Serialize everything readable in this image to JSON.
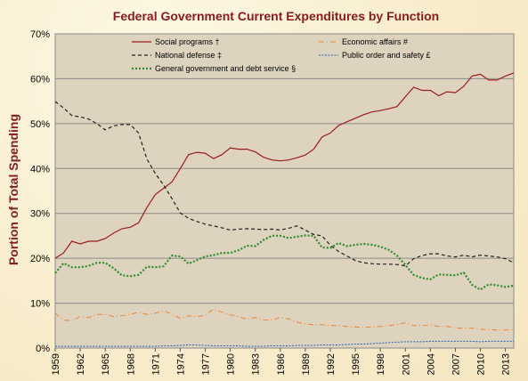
{
  "chart_data": {
    "type": "line",
    "title": "Federal Government Current Expenditures by Function",
    "ylabel": "Portion of Total Spending",
    "xlabel": "",
    "ylim": [
      0,
      70
    ],
    "yticks": [
      0,
      10,
      20,
      30,
      40,
      50,
      60,
      70
    ],
    "ytick_labels": [
      "0%",
      "10%",
      "20%",
      "30%",
      "40%",
      "50%",
      "60%",
      "70%"
    ],
    "xlim": [
      1959,
      2014
    ],
    "xticks": [
      1959,
      1962,
      1965,
      1968,
      1971,
      1974,
      1977,
      1980,
      1983,
      1986,
      1989,
      1992,
      1995,
      1998,
      2001,
      2004,
      2007,
      2010,
      2013
    ],
    "grid": "horizontal",
    "legend_placement": "top",
    "x": [
      1959,
      1960,
      1961,
      1962,
      1963,
      1964,
      1965,
      1966,
      1967,
      1968,
      1969,
      1970,
      1971,
      1972,
      1973,
      1974,
      1975,
      1976,
      1977,
      1978,
      1979,
      1980,
      1981,
      1982,
      1983,
      1984,
      1985,
      1986,
      1987,
      1988,
      1989,
      1990,
      1991,
      1992,
      1993,
      1994,
      1995,
      1996,
      1997,
      1998,
      1999,
      2000,
      2001,
      2002,
      2003,
      2004,
      2005,
      2006,
      2007,
      2008,
      2009,
      2010,
      2011,
      2012,
      2013,
      2014
    ],
    "series": [
      {
        "name": "Social programs †",
        "color": "#9b1c1c",
        "style": "solid",
        "values": [
          20.0,
          21.2,
          23.8,
          23.2,
          23.8,
          23.8,
          24.4,
          25.6,
          26.6,
          26.9,
          27.9,
          31.3,
          34.2,
          35.6,
          37.0,
          40.0,
          43.1,
          43.6,
          43.4,
          42.2,
          43.1,
          44.6,
          44.3,
          44.3,
          43.7,
          42.5,
          41.9,
          41.7,
          41.9,
          42.4,
          43.0,
          44.3,
          47.0,
          47.9,
          49.6,
          50.4,
          51.2,
          52.0,
          52.6,
          52.9,
          53.3,
          53.8,
          56.0,
          58.1,
          57.4,
          57.4,
          56.2,
          57.1,
          56.9,
          58.3,
          60.6,
          61.0,
          59.7,
          59.7,
          60.6,
          61.3
        ]
      },
      {
        "name": "Economic affairs #",
        "color": "#e8843a",
        "style": "dashdot",
        "values": [
          7.8,
          6.2,
          6.1,
          7.0,
          6.8,
          7.5,
          7.5,
          7.0,
          7.2,
          7.5,
          8.0,
          7.5,
          7.8,
          8.3,
          7.6,
          6.6,
          7.2,
          7.0,
          7.3,
          8.7,
          8.0,
          7.4,
          7.0,
          6.4,
          6.8,
          6.2,
          6.3,
          6.8,
          6.5,
          5.8,
          5.4,
          5.2,
          5.2,
          5.0,
          5.0,
          4.8,
          4.7,
          4.6,
          4.7,
          4.8,
          5.0,
          5.3,
          5.6,
          5.0,
          5.0,
          5.2,
          4.8,
          4.8,
          4.5,
          4.4,
          4.4,
          4.2,
          4.1,
          4.0,
          4.0,
          4.1
        ]
      },
      {
        "name": "National defense ‡",
        "color": "#222222",
        "style": "dashed",
        "values": [
          54.9,
          53.5,
          51.8,
          51.5,
          51.0,
          50.0,
          48.6,
          49.5,
          49.8,
          49.8,
          47.9,
          42.1,
          38.9,
          36.3,
          33.3,
          30.1,
          28.9,
          28.2,
          27.6,
          27.2,
          26.8,
          26.3,
          26.5,
          26.6,
          26.5,
          26.4,
          26.5,
          26.3,
          26.7,
          27.2,
          26.3,
          25.3,
          25.0,
          22.9,
          21.5,
          20.5,
          19.5,
          19.0,
          18.8,
          18.7,
          18.7,
          18.6,
          18.3,
          19.9,
          20.6,
          21.0,
          21.0,
          20.5,
          20.3,
          20.7,
          20.3,
          20.7,
          20.5,
          20.3,
          19.9,
          19.0
        ]
      },
      {
        "name": "Public order and safety £",
        "color": "#2a5fb8",
        "style": "dotted",
        "values": [
          0.4,
          0.4,
          0.4,
          0.4,
          0.4,
          0.4,
          0.4,
          0.4,
          0.4,
          0.4,
          0.4,
          0.4,
          0.4,
          0.5,
          0.5,
          0.6,
          0.7,
          0.7,
          0.6,
          0.5,
          0.5,
          0.5,
          0.5,
          0.4,
          0.4,
          0.4,
          0.5,
          0.5,
          0.5,
          0.6,
          0.6,
          0.6,
          0.7,
          0.7,
          0.7,
          0.8,
          0.9,
          0.9,
          1.0,
          1.1,
          1.2,
          1.3,
          1.4,
          1.4,
          1.4,
          1.5,
          1.5,
          1.5,
          1.5,
          1.5,
          1.5,
          1.4,
          1.5,
          1.5,
          1.5,
          1.5
        ]
      },
      {
        "name": "General government and debt service §",
        "color": "#2e8b2e",
        "style": "dotted-bold",
        "values": [
          16.7,
          18.9,
          18.0,
          18.0,
          18.3,
          19.0,
          19.0,
          17.8,
          16.2,
          16.0,
          16.3,
          18.1,
          18.0,
          18.2,
          20.6,
          20.4,
          18.8,
          19.6,
          20.4,
          20.7,
          21.2,
          21.2,
          21.8,
          22.8,
          22.7,
          24.1,
          25.0,
          25.0,
          24.5,
          24.8,
          25.1,
          25.0,
          22.4,
          22.3,
          23.4,
          22.7,
          23.0,
          23.2,
          23.0,
          22.6,
          21.9,
          20.6,
          18.5,
          16.3,
          15.6,
          15.3,
          16.4,
          16.3,
          16.2,
          16.8,
          14.1,
          13.0,
          14.2,
          14.0,
          13.6,
          13.9
        ]
      }
    ]
  }
}
